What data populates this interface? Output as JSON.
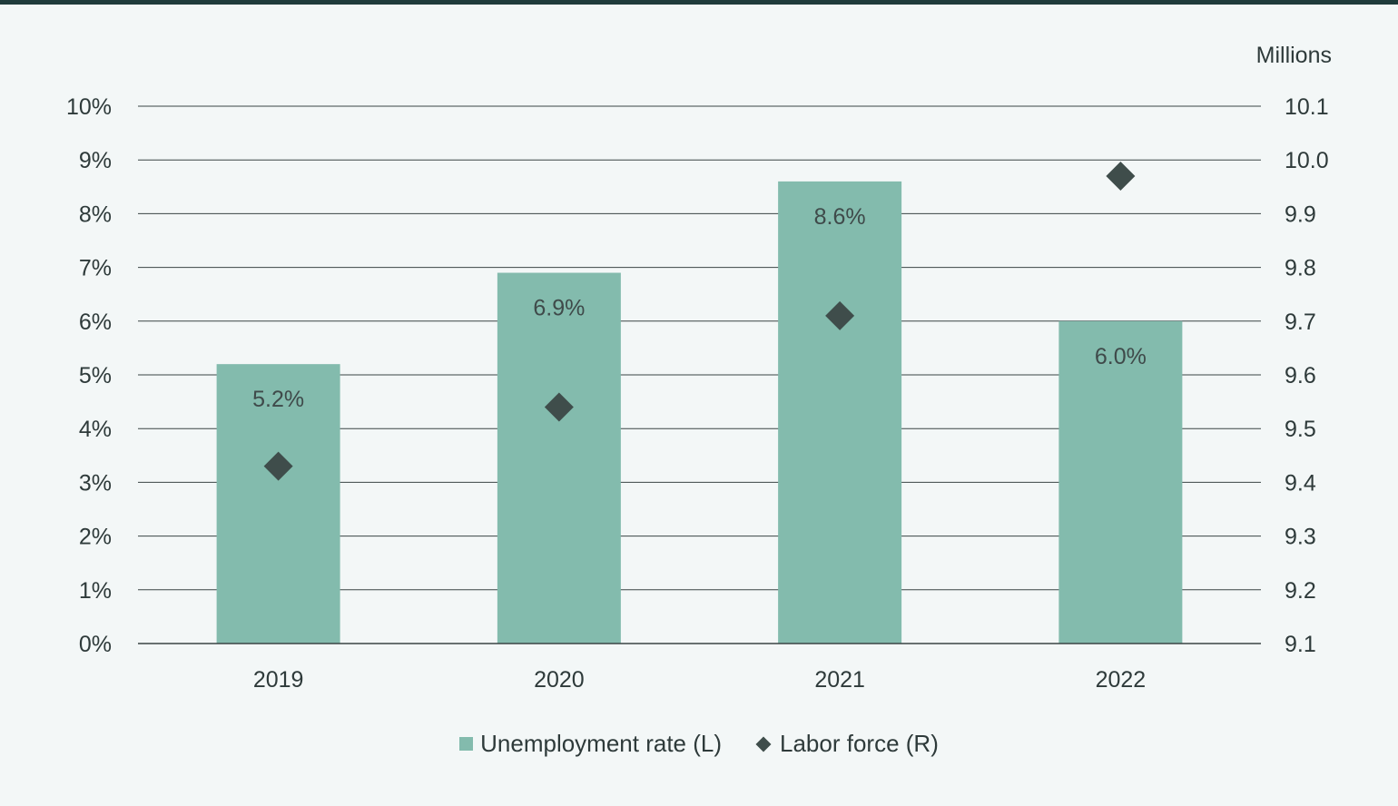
{
  "chart_data": {
    "type": "bar",
    "title": "",
    "categories": [
      "2019",
      "2020",
      "2021",
      "2022"
    ],
    "series": [
      {
        "name": "Unemployment rate (L)",
        "kind": "bar",
        "axis": "left",
        "values": [
          5.2,
          6.9,
          8.6,
          6.0
        ],
        "labels": [
          "5.2%",
          "6.9%",
          "8.6%",
          "6.0%"
        ],
        "color": "#83bbad"
      },
      {
        "name": "Labor force (R)",
        "kind": "scatter",
        "marker": "diamond",
        "axis": "right",
        "values": [
          9.43,
          9.54,
          9.71,
          9.97
        ],
        "color": "#3f4d4b"
      }
    ],
    "y_left": {
      "ylim": [
        0,
        10
      ],
      "ticks": [
        "0%",
        "1%",
        "2%",
        "3%",
        "4%",
        "5%",
        "6%",
        "7%",
        "8%",
        "9%",
        "10%"
      ]
    },
    "y_right": {
      "label": "Millions",
      "ylim": [
        9.1,
        10.1
      ],
      "ticks": [
        "9.1",
        "9.2",
        "9.3",
        "9.4",
        "9.5",
        "9.6",
        "9.7",
        "9.8",
        "9.9",
        "10.0",
        "10.1"
      ]
    },
    "grid": true,
    "legend_position": "bottom-center"
  },
  "colors": {
    "gridline": "#3a4545",
    "axis_text": "#2e3a3a"
  }
}
